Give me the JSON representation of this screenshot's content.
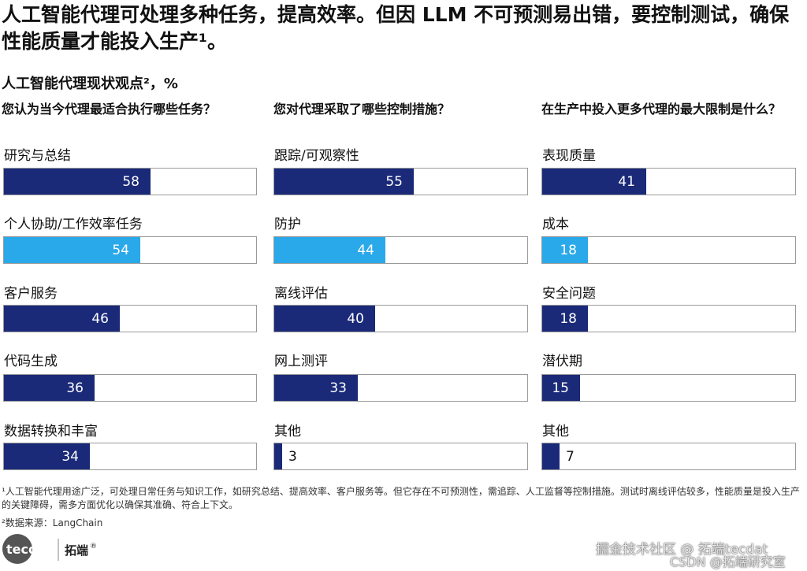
{
  "headline": "人工智能代理可处理多种任务，提高效率。但因 LLM 不可预测易出错，要控制测试，确保性能质量才能投入生产¹。",
  "subtitle": "人工智能代理现状观点²，%",
  "colors": {
    "dark": "#1a2a78",
    "light": "#29a8ea",
    "border": "#9a9a9a"
  },
  "chart_data": [
    {
      "type": "bar",
      "title": "您认为当今代理最适合执行哪些任务？",
      "categories": [
        "研究与总结",
        "个人协助/工作效率任务",
        "客户服务",
        "代码生成",
        "数据转换和丰富"
      ],
      "values": [
        58,
        54,
        46,
        36,
        34
      ],
      "highlight_index": 1,
      "xlim": [
        0,
        100
      ]
    },
    {
      "type": "bar",
      "title": "您对代理采取了哪些控制措施？",
      "categories": [
        "跟踪/可观察性",
        "防护",
        "离线评估",
        "网上测评",
        "其他"
      ],
      "values": [
        55,
        44,
        40,
        33,
        3
      ],
      "highlight_index": 1,
      "xlim": [
        0,
        100
      ]
    },
    {
      "type": "bar",
      "title": "在生产中投入更多代理的最大限制是什么？",
      "categories": [
        "表现质量",
        "成本",
        "安全问题",
        "潜伏期",
        "其他"
      ],
      "values": [
        41,
        18,
        18,
        15,
        7
      ],
      "highlight_index": 1,
      "xlim": [
        0,
        100
      ]
    }
  ],
  "footnotes": {
    "note1": "¹人工智能代理用途广泛，可处理日常任务与知识工作，如研究总结、提高效率、客户服务等。但它存在不可预测性，需追踪、人工监督等控制措施。测试时离线评估较多，性能质量是投入生产的关键障碍，需多方面优化以确保其准确、符合上下文。",
    "note2": "²数据来源：LangChain"
  },
  "logo": {
    "brand": "tecdat",
    "cn": "拓端",
    "reg": "®"
  },
  "watermarks": {
    "line1": "掘金技术社区 @ 拓端tecdat",
    "line2": "CSDN @拓端研究室"
  }
}
